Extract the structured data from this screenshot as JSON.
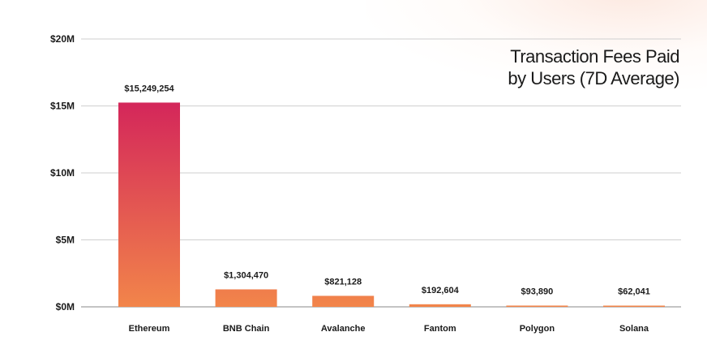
{
  "chart_data": {
    "type": "bar",
    "title_lines": [
      "Transaction Fees Paid",
      "by Users (7D Average)"
    ],
    "xlabel": "",
    "ylabel": "",
    "categories": [
      "Ethereum",
      "BNB Chain",
      "Avalanche",
      "Fantom",
      "Polygon",
      "Solana"
    ],
    "values": [
      15249254,
      1304470,
      821128,
      192604,
      93890,
      62041
    ],
    "data_labels": [
      "$15,249,254",
      "$1,304,470",
      "$821,128",
      "$192,604",
      "$93,890",
      "$62,041"
    ],
    "ylim": [
      0,
      20000000
    ],
    "yticks": [
      0,
      5000000,
      10000000,
      15000000,
      20000000
    ],
    "ytick_labels": [
      "$0M",
      "$5M",
      "$10M",
      "$15M",
      "$20M"
    ],
    "grid": true,
    "legend": "none",
    "colors": {
      "bar_top": "#d4275a",
      "bar_bottom": "#f2854a",
      "grid": "#cfcfcf",
      "axis": "#8a8a8a",
      "text": "#1a1a1a"
    }
  }
}
